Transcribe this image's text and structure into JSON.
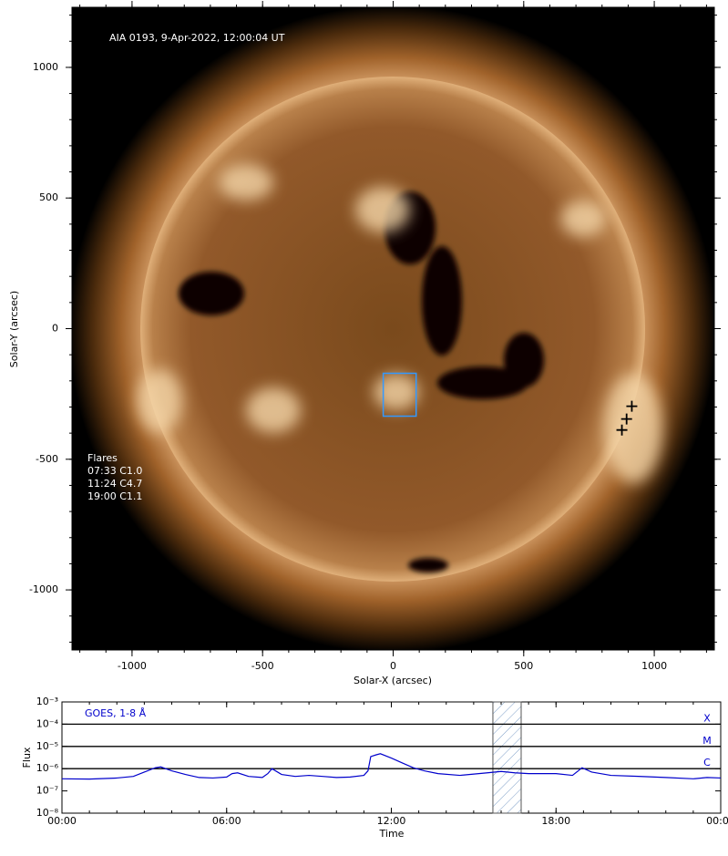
{
  "chart_data": [
    {
      "type": "image",
      "annotation": "AIA 0193, 9-Apr-2022, 12:00:04 UT",
      "xlabel": "Solar-X (arcsec)",
      "ylabel": "Solar-Y (arcsec)",
      "xlim": [
        -1230,
        1230
      ],
      "ylim": [
        -1230,
        1230
      ],
      "xticks": [
        -1000,
        -500,
        0,
        500,
        1000
      ],
      "yticks": [
        -1000,
        -500,
        0,
        500,
        1000
      ],
      "minor_tick_step": 100,
      "flares_title": "Flares",
      "flares": [
        "07:33 C1.0",
        "11:24 C4.7",
        "19:00 C1.1"
      ],
      "box": {
        "x": [
          -38,
          88
        ],
        "y": [
          -335,
          -171
        ],
        "color": "#3399ff"
      },
      "flare_positions": {
        "x": [
          914,
          894,
          876
        ],
        "y": [
          -297,
          -346,
          -388
        ],
        "color": "#000000"
      }
    },
    {
      "type": "line",
      "title": "GOES, 1-8 Å",
      "xlabel": "Time",
      "ylabel": "Flux",
      "xlim": [
        0,
        24
      ],
      "ylim": [
        1e-08,
        0.001
      ],
      "log_y": true,
      "xticks": [
        {
          "value": 0,
          "label": "00:00"
        },
        {
          "value": 6,
          "label": "06:00"
        },
        {
          "value": 12,
          "label": "12:00"
        },
        {
          "value": 18,
          "label": "18:00"
        },
        {
          "value": 24,
          "label": "00:00"
        }
      ],
      "minor_tick_step": 1,
      "yticks": [
        {
          "value": 1e-08,
          "label": "10⁻⁸"
        },
        {
          "value": 1e-07,
          "label": "10⁻⁷"
        },
        {
          "value": 1e-06,
          "label": "10⁻⁶"
        },
        {
          "value": 1e-05,
          "label": "10⁻⁵"
        },
        {
          "value": 0.0001,
          "label": "10⁻⁴"
        },
        {
          "value": 0.001,
          "label": "10⁻³"
        }
      ],
      "class_levels": [
        {
          "value": 0.0001,
          "label": "X"
        },
        {
          "value": 1e-05,
          "label": "M"
        },
        {
          "value": 1e-06,
          "label": "C"
        }
      ],
      "highlight": [
        15.7,
        16.73
      ],
      "series": [
        {
          "name": "GOES, 1-8 Å",
          "color": "#0000cc",
          "x": [
            0,
            1,
            2,
            2.6,
            3.0,
            3.4,
            3.6,
            4.0,
            4.5,
            5.0,
            5.5,
            6.0,
            6.2,
            6.4,
            6.8,
            7.3,
            7.5,
            7.65,
            8.0,
            8.5,
            9,
            9.5,
            10,
            10.5,
            11.0,
            11.15,
            11.25,
            11.45,
            11.6,
            12,
            12.4,
            12.8,
            13.2,
            13.7,
            14.5,
            15.5,
            16,
            16.5,
            17,
            18,
            18.6,
            18.95,
            19.3,
            20,
            21,
            22,
            23,
            23.5,
            24
          ],
          "values": [
            3.5e-07,
            3.4e-07,
            3.8e-07,
            4.5e-07,
            7e-07,
            1.1e-06,
            1.2e-06,
            8e-07,
            5.5e-07,
            4e-07,
            3.8e-07,
            4.2e-07,
            6e-07,
            6.5e-07,
            4.5e-07,
            4e-07,
            6e-07,
            1e-06,
            5.5e-07,
            4.5e-07,
            5e-07,
            4.5e-07,
            4e-07,
            4.2e-07,
            5e-07,
            8e-07,
            3.5e-06,
            4.2e-06,
            4.7e-06,
            3e-06,
            1.8e-06,
            1.1e-06,
            8e-07,
            6e-07,
            5e-07,
            6.5e-07,
            7.5e-07,
            6.5e-07,
            6e-07,
            6e-07,
            5e-07,
            1.1e-06,
            7e-07,
            5e-07,
            4.5e-07,
            4e-07,
            3.5e-07,
            4e-07,
            3.8e-07
          ]
        }
      ]
    }
  ]
}
